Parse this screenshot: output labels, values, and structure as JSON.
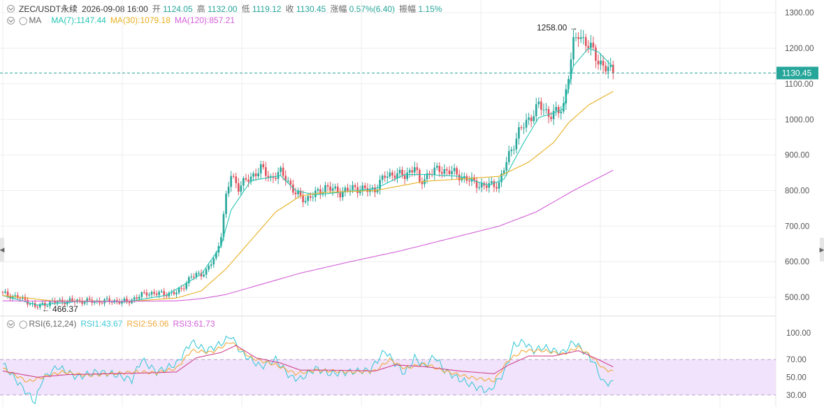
{
  "header": {
    "symbol": "ZEC/USDT永续",
    "datetime": "2026-09-08 16:00",
    "open_label": "开",
    "open": "1124.05",
    "high_label": "高",
    "high": "1132.00",
    "low_label": "低",
    "low": "1119.12",
    "close_label": "收",
    "close": "1130.45",
    "change_label": "涨幅",
    "change": "0.57%(6.40)",
    "amplitude_label": "振幅",
    "amplitude": "1.15%"
  },
  "ma_legend": {
    "name": "MA",
    "ma7": "MA(7):1147.44",
    "ma30": "MA(30):1079.18",
    "ma120": "MA(120):857.21"
  },
  "rsi_legend": {
    "name": "RSI(6,12,24)",
    "rsi1": "RSI1:43.67",
    "rsi2": "RSI2:56.06",
    "rsi3": "RSI3:61.73"
  },
  "price_tag": "1130.45",
  "annotations": {
    "high": "1258.00",
    "low": "466.37"
  },
  "colors": {
    "up": "#26a69a",
    "down": "#e0525d",
    "ma7": "#26c6b4",
    "ma30": "#e8b021",
    "ma120": "#d35fd8",
    "rsi1": "#3fc9d8",
    "rsi2": "#f2a93b",
    "rsi3": "#d0468e",
    "rsi_band": "#f1e3fb",
    "grid": "#eeeeee"
  },
  "chart_data": [
    {
      "type": "candlestick",
      "title": "ZEC/USDT永续",
      "ylim": [
        455,
        1320
      ],
      "y_ticks": [
        "1300.00",
        "1200.00",
        "1100.00",
        "1000.00",
        "900.00",
        "800.00",
        "700.00",
        "600.00",
        "500.00"
      ],
      "y_tick_values": [
        1300,
        1200,
        1100,
        1000,
        900,
        800,
        700,
        600,
        500
      ],
      "last_close": 1130.45,
      "anchors": [
        [
          0,
          510
        ],
        [
          6,
          500
        ],
        [
          11,
          485
        ],
        [
          13,
          472
        ],
        [
          16,
          480
        ],
        [
          22,
          488
        ],
        [
          30,
          490
        ],
        [
          38,
          488
        ],
        [
          44,
          490
        ],
        [
          50,
          487
        ],
        [
          54,
          500
        ],
        [
          58,
          512
        ],
        [
          64,
          510
        ],
        [
          70,
          512
        ],
        [
          72,
          525
        ],
        [
          76,
          558
        ],
        [
          82,
          572
        ],
        [
          86,
          620
        ],
        [
          88,
          680
        ],
        [
          90,
          780
        ],
        [
          92,
          845
        ],
        [
          95,
          810
        ],
        [
          100,
          838
        ],
        [
          104,
          862
        ],
        [
          108,
          835
        ],
        [
          112,
          850
        ],
        [
          114,
          838
        ],
        [
          118,
          790
        ],
        [
          122,
          775
        ],
        [
          126,
          790
        ],
        [
          130,
          810
        ],
        [
          136,
          795
        ],
        [
          142,
          808
        ],
        [
          148,
          800
        ],
        [
          150,
          805
        ],
        [
          154,
          840
        ],
        [
          158,
          848
        ],
        [
          162,
          840
        ],
        [
          166,
          870
        ],
        [
          168,
          818
        ],
        [
          172,
          852
        ],
        [
          176,
          858
        ],
        [
          180,
          855
        ],
        [
          186,
          835
        ],
        [
          190,
          822
        ],
        [
          194,
          812
        ],
        [
          200,
          820
        ],
        [
          204,
          900
        ],
        [
          208,
          965
        ],
        [
          212,
          1000
        ],
        [
          216,
          1040
        ],
        [
          220,
          1015
        ],
        [
          224,
          1020
        ],
        [
          226,
          1040
        ],
        [
          228,
          1130
        ],
        [
          230,
          1210
        ],
        [
          232,
          1240
        ],
        [
          236,
          1210
        ],
        [
          240,
          1165
        ],
        [
          244,
          1140
        ],
        [
          246,
          1130
        ]
      ],
      "ma_anchors": {
        "ma7": [
          [
            0,
            505
          ],
          [
            14,
            478
          ],
          [
            30,
            488
          ],
          [
            50,
            487
          ],
          [
            66,
            506
          ],
          [
            80,
            565
          ],
          [
            88,
            645
          ],
          [
            92,
            745
          ],
          [
            100,
            828
          ],
          [
            112,
            842
          ],
          [
            118,
            800
          ],
          [
            126,
            788
          ],
          [
            140,
            798
          ],
          [
            150,
            805
          ],
          [
            162,
            845
          ],
          [
            172,
            845
          ],
          [
            184,
            840
          ],
          [
            196,
            815
          ],
          [
            202,
            832
          ],
          [
            210,
            935
          ],
          [
            216,
            1005
          ],
          [
            222,
            1018
          ],
          [
            226,
            1030
          ],
          [
            230,
            1150
          ],
          [
            236,
            1200
          ],
          [
            240,
            1190
          ],
          [
            246,
            1147
          ]
        ],
        "ma30": [
          [
            0,
            505
          ],
          [
            20,
            490
          ],
          [
            50,
            488
          ],
          [
            70,
            498
          ],
          [
            80,
            518
          ],
          [
            90,
            580
          ],
          [
            100,
            660
          ],
          [
            110,
            740
          ],
          [
            120,
            785
          ],
          [
            130,
            795
          ],
          [
            150,
            800
          ],
          [
            170,
            826
          ],
          [
            190,
            835
          ],
          [
            200,
            840
          ],
          [
            212,
            880
          ],
          [
            222,
            935
          ],
          [
            228,
            990
          ],
          [
            236,
            1040
          ],
          [
            246,
            1079
          ]
        ],
        "ma120": [
          [
            0,
            490
          ],
          [
            40,
            488
          ],
          [
            70,
            490
          ],
          [
            80,
            496
          ],
          [
            90,
            508
          ],
          [
            100,
            528
          ],
          [
            120,
            568
          ],
          [
            140,
            600
          ],
          [
            160,
            630
          ],
          [
            180,
            665
          ],
          [
            200,
            700
          ],
          [
            215,
            740
          ],
          [
            230,
            800
          ],
          [
            246,
            857
          ]
        ]
      }
    },
    {
      "type": "line",
      "title": "RSI(6,12,24)",
      "ylim": [
        18,
        108
      ],
      "y_ticks": [
        "100.00",
        "70.00",
        "50.00",
        "30.00"
      ],
      "y_tick_values": [
        100,
        70,
        50,
        30
      ],
      "band": [
        30,
        70
      ],
      "series": [
        {
          "name": "RSI1",
          "last": 43.67,
          "anchors": [
            [
              0,
              65
            ],
            [
              8,
              38
            ],
            [
              13,
              22
            ],
            [
              16,
              48
            ],
            [
              22,
              62
            ],
            [
              30,
              50
            ],
            [
              38,
              56
            ],
            [
              44,
              54
            ],
            [
              52,
              47
            ],
            [
              56,
              70
            ],
            [
              62,
              56
            ],
            [
              70,
              65
            ],
            [
              76,
              90
            ],
            [
              82,
              80
            ],
            [
              88,
              88
            ],
            [
              92,
              97
            ],
            [
              96,
              78
            ],
            [
              100,
              70
            ],
            [
              104,
              62
            ],
            [
              110,
              70
            ],
            [
              116,
              50
            ],
            [
              120,
              48
            ],
            [
              126,
              60
            ],
            [
              132,
              54
            ],
            [
              140,
              56
            ],
            [
              148,
              58
            ],
            [
              154,
              80
            ],
            [
              158,
              66
            ],
            [
              162,
              54
            ],
            [
              166,
              72
            ],
            [
              170,
              62
            ],
            [
              174,
              74
            ],
            [
              178,
              58
            ],
            [
              184,
              48
            ],
            [
              190,
              40
            ],
            [
              196,
              34
            ],
            [
              202,
              55
            ],
            [
              206,
              86
            ],
            [
              210,
              90
            ],
            [
              214,
              80
            ],
            [
              218,
              84
            ],
            [
              222,
              80
            ],
            [
              226,
              78
            ],
            [
              230,
              90
            ],
            [
              234,
              80
            ],
            [
              238,
              68
            ],
            [
              242,
              44
            ],
            [
              246,
              43.67
            ]
          ]
        },
        {
          "name": "RSI2",
          "last": 56.06,
          "anchors": [
            [
              0,
              60
            ],
            [
              10,
              45
            ],
            [
              16,
              50
            ],
            [
              24,
              56
            ],
            [
              34,
              52
            ],
            [
              44,
              54
            ],
            [
              54,
              56
            ],
            [
              62,
              55
            ],
            [
              70,
              60
            ],
            [
              76,
              80
            ],
            [
              84,
              78
            ],
            [
              92,
              90
            ],
            [
              100,
              72
            ],
            [
              110,
              64
            ],
            [
              118,
              54
            ],
            [
              126,
              58
            ],
            [
              140,
              56
            ],
            [
              150,
              57
            ],
            [
              156,
              70
            ],
            [
              162,
              60
            ],
            [
              170,
              65
            ],
            [
              178,
              57
            ],
            [
              188,
              50
            ],
            [
              198,
              46
            ],
            [
              204,
              70
            ],
            [
              210,
              80
            ],
            [
              218,
              80
            ],
            [
              226,
              76
            ],
            [
              232,
              84
            ],
            [
              238,
              72
            ],
            [
              242,
              60
            ],
            [
              246,
              56.06
            ]
          ]
        },
        {
          "name": "RSI3",
          "last": 61.73,
          "anchors": [
            [
              0,
              57
            ],
            [
              14,
              50
            ],
            [
              26,
              53
            ],
            [
              44,
              54
            ],
            [
              60,
              55
            ],
            [
              70,
              56
            ],
            [
              78,
              72
            ],
            [
              88,
              78
            ],
            [
              94,
              86
            ],
            [
              102,
              72
            ],
            [
              112,
              66
            ],
            [
              120,
              58
            ],
            [
              132,
              58
            ],
            [
              150,
              57
            ],
            [
              158,
              64
            ],
            [
              170,
              62
            ],
            [
              184,
              57
            ],
            [
              198,
              54
            ],
            [
              204,
              64
            ],
            [
              212,
              74
            ],
            [
              222,
              74
            ],
            [
              232,
              80
            ],
            [
              240,
              70
            ],
            [
              246,
              61.73
            ]
          ]
        }
      ]
    }
  ]
}
